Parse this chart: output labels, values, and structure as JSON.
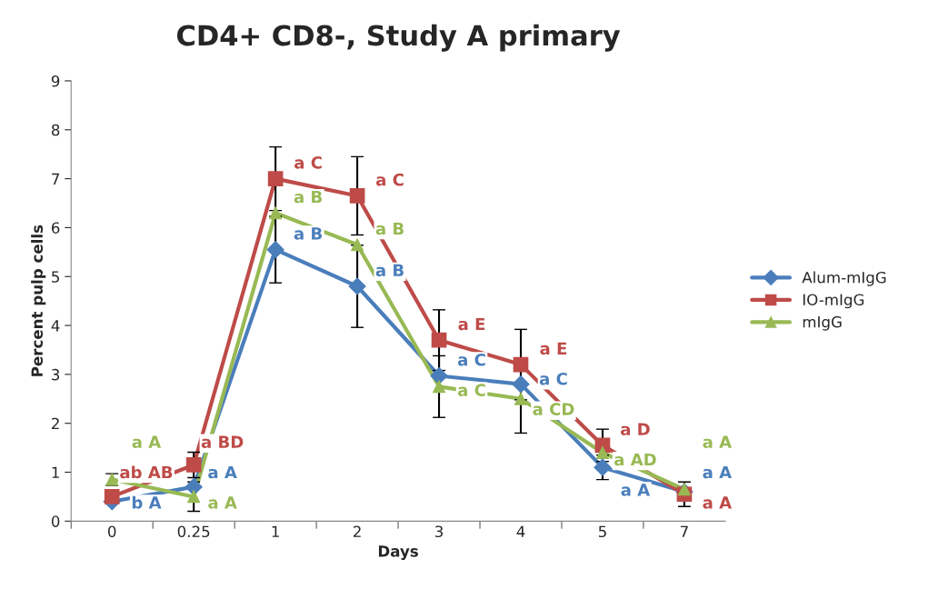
{
  "chart_data": {
    "type": "line",
    "title": "CD4+ CD8-, Study A primary",
    "xlabel": "Days",
    "ylabel": "Percent pulp cells",
    "categories": [
      "0",
      "0.25",
      "1",
      "2",
      "3",
      "4",
      "5",
      "7"
    ],
    "ylim": [
      0,
      9
    ],
    "yticks": [
      0,
      1,
      2,
      3,
      4,
      5,
      6,
      7,
      8,
      9
    ],
    "grid": false,
    "legend": "right",
    "series": [
      {
        "name": "Alum-mIgG",
        "color": "#4a7ebb",
        "marker": "diamond",
        "values": [
          0.4,
          0.7,
          5.55,
          4.8,
          2.97,
          2.8,
          1.1,
          0.6
        ],
        "errors": [
          null,
          null,
          0.68,
          0.84,
          null,
          null,
          0.25,
          null
        ],
        "value_labels": [
          "b A",
          "a A",
          "a B",
          "a B",
          "a C",
          "a C",
          "a A",
          "a A"
        ]
      },
      {
        "name": "IO-mIgG",
        "color": "#be4b48",
        "marker": "square",
        "values": [
          0.5,
          1.15,
          7.0,
          6.65,
          3.7,
          3.2,
          1.55,
          0.55
        ],
        "errors": [
          null,
          0.26,
          0.65,
          0.8,
          0.62,
          0.72,
          0.33,
          0.25
        ],
        "value_labels": [
          "ab AB",
          "a BD",
          "a C",
          "a C",
          "a E",
          "a E",
          "a D",
          "a A"
        ]
      },
      {
        "name": "mIgG",
        "color": "#98b954",
        "marker": "triangle",
        "values": [
          0.85,
          0.5,
          6.3,
          5.65,
          2.75,
          2.5,
          1.4,
          0.65
        ],
        "errors": [
          0.12,
          0.3,
          null,
          null,
          0.63,
          0.7,
          null,
          null
        ],
        "value_labels": [
          "a A",
          "a A",
          "a B",
          "a B",
          "a C",
          "a CD",
          "a AD",
          "a A"
        ]
      }
    ]
  }
}
